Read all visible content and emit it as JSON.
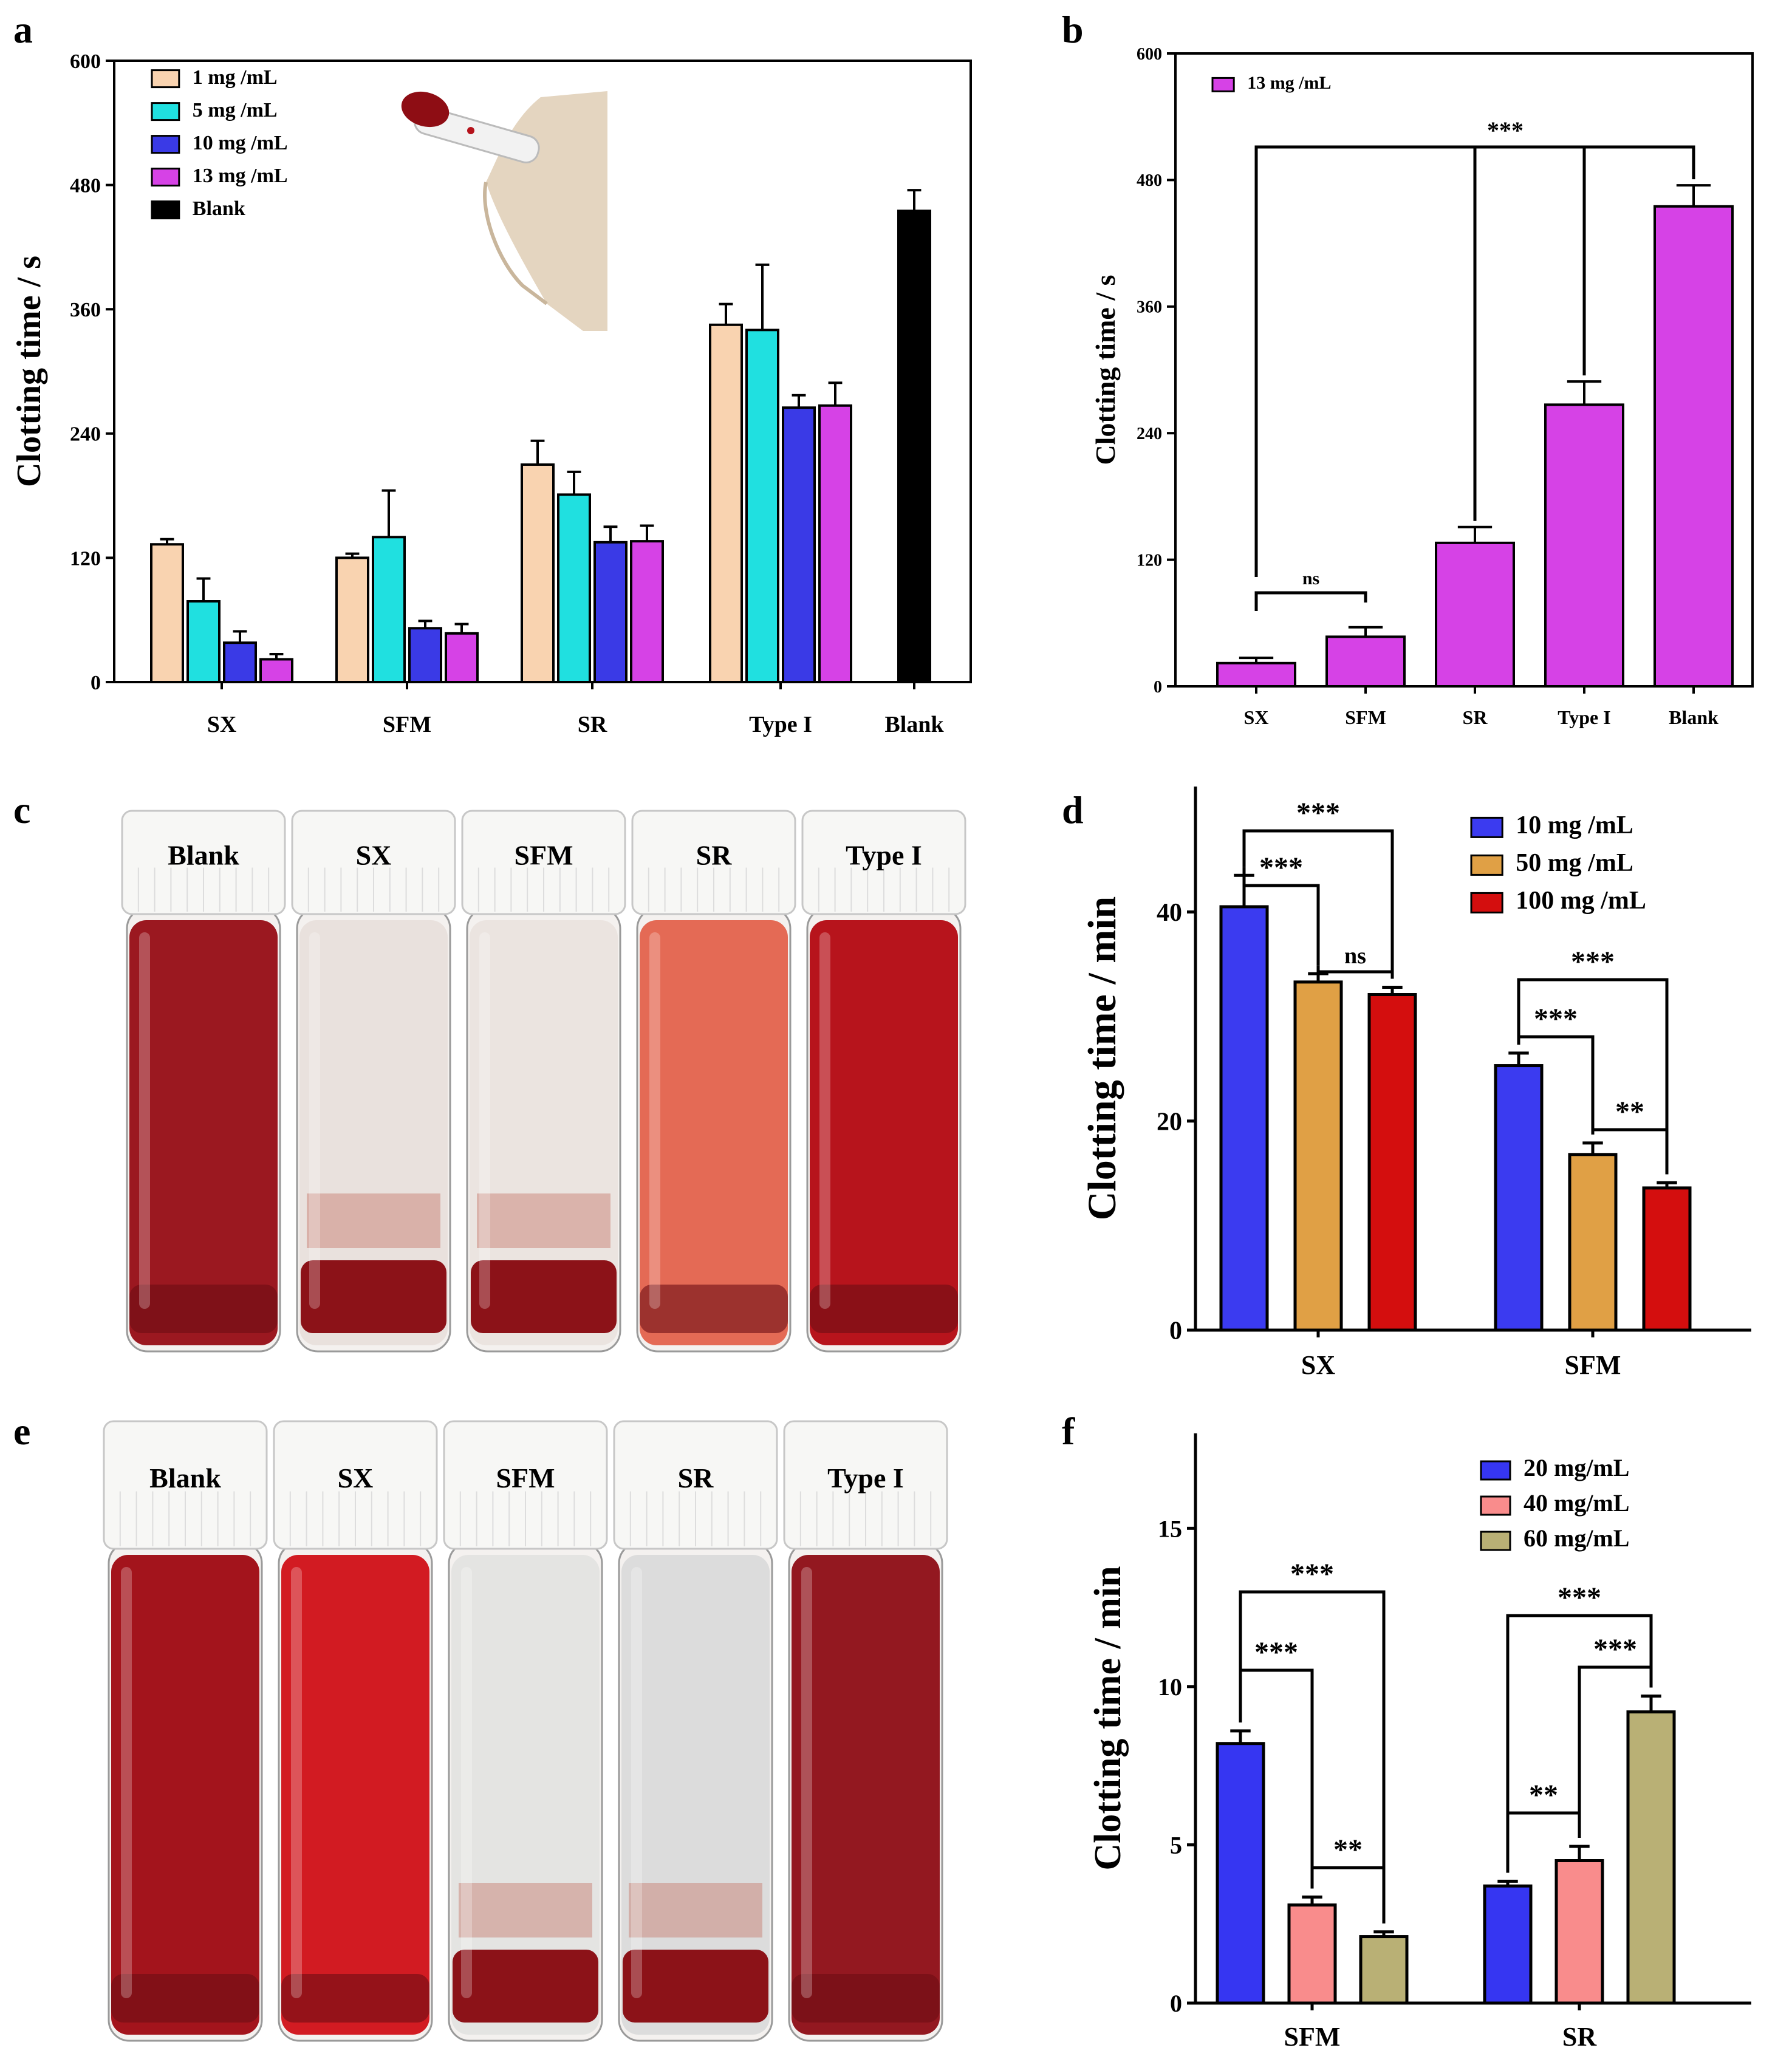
{
  "colors": {
    "c1": "#f9d3b0",
    "c5": "#20e0e0",
    "c10": "#3a3ae6",
    "c13": "#d642e6",
    "black": "#000000",
    "d10": "#3b3bf0",
    "d50": "#e0a045",
    "d100": "#d40e0e",
    "f20": "#3636f2",
    "f40": "#f98c8c",
    "f60": "#b9b075"
  },
  "chart_data": [
    {
      "panel": "a",
      "type": "bar",
      "ylabel": "Clotting time / s",
      "ylim": [
        0,
        600
      ],
      "yticks": [
        0,
        120,
        240,
        360,
        480,
        600
      ],
      "categories": [
        "SX",
        "SFM",
        "SR",
        "Type I",
        "Blank"
      ],
      "series": [
        {
          "name": "1 mg /mL",
          "color": "#f9d3b0",
          "values": [
            133,
            120,
            210,
            345,
            null
          ],
          "errors": [
            5,
            4,
            23,
            20,
            null
          ]
        },
        {
          "name": "5 mg /mL",
          "color": "#20e0e0",
          "values": [
            78,
            140,
            181,
            340,
            null
          ],
          "errors": [
            22,
            45,
            22,
            63,
            null
          ]
        },
        {
          "name": "10 mg /mL",
          "color": "#3a3ae6",
          "values": [
            38,
            52,
            135,
            265,
            null
          ],
          "errors": [
            11,
            7,
            15,
            12,
            null
          ]
        },
        {
          "name": "13 mg /mL",
          "color": "#d642e6",
          "values": [
            22,
            47,
            136,
            267,
            null
          ],
          "errors": [
            5,
            9,
            15,
            22,
            null
          ]
        },
        {
          "name": "Blank",
          "color": "#000000",
          "values": [
            null,
            null,
            null,
            null,
            455
          ],
          "errors": [
            null,
            null,
            null,
            null,
            20
          ]
        }
      ],
      "inset": "photo of blood-clotted tube"
    },
    {
      "panel": "b",
      "type": "bar",
      "ylabel": "Clotting time / s",
      "ylim": [
        0,
        600
      ],
      "yticks": [
        0,
        120,
        240,
        360,
        480,
        600
      ],
      "categories": [
        "SX",
        "SFM",
        "SR",
        "Type I",
        "Blank"
      ],
      "series": [
        {
          "name": "13 mg /mL",
          "color": "#d642e6",
          "values": [
            22,
            47,
            136,
            267,
            455
          ],
          "errors": [
            5,
            9,
            15,
            22,
            20
          ]
        }
      ],
      "significance": [
        {
          "from": 0,
          "to": 1,
          "label": "ns"
        },
        {
          "from": 0,
          "to": 4,
          "label": "***",
          "drops": [
            2,
            3
          ]
        }
      ]
    },
    {
      "panel": "d",
      "type": "bar",
      "ylabel": "Clotting time / min",
      "ylim": [
        0,
        52
      ],
      "yticks": [
        0,
        20,
        40
      ],
      "categories": [
        "SX",
        "SFM"
      ],
      "series": [
        {
          "name": "10 mg /mL",
          "color": "#3b3bf0",
          "values": [
            40.5,
            25.3
          ],
          "errors": [
            3.0,
            1.2
          ]
        },
        {
          "name": "50 mg /mL",
          "color": "#e0a045",
          "values": [
            33.3,
            16.8
          ],
          "errors": [
            0.8,
            1.1
          ]
        },
        {
          "name": "100 mg /mL",
          "color": "#d40e0e",
          "values": [
            32.1,
            13.6
          ],
          "errors": [
            0.7,
            0.5
          ]
        }
      ],
      "significance": [
        {
          "group": 0,
          "from": 0,
          "to": 2,
          "label": "***"
        },
        {
          "group": 0,
          "from": 0,
          "to": 1,
          "label": "***"
        },
        {
          "group": 0,
          "from": 1,
          "to": 2,
          "label": "ns"
        },
        {
          "group": 1,
          "from": 0,
          "to": 2,
          "label": "***"
        },
        {
          "group": 1,
          "from": 0,
          "to": 1,
          "label": "***"
        },
        {
          "group": 1,
          "from": 1,
          "to": 2,
          "label": "**"
        }
      ]
    },
    {
      "panel": "f",
      "type": "bar",
      "ylabel": "Clotting time / min",
      "ylim": [
        0,
        18
      ],
      "yticks": [
        0,
        5,
        10,
        15
      ],
      "categories": [
        "SFM",
        "SR"
      ],
      "series": [
        {
          "name": "20 mg/mL",
          "color": "#3636f2",
          "values": [
            8.2,
            3.7
          ],
          "errors": [
            0.4,
            0.15
          ]
        },
        {
          "name": "40 mg/mL",
          "color": "#f98c8c",
          "values": [
            3.1,
            4.5
          ],
          "errors": [
            0.25,
            0.45
          ]
        },
        {
          "name": "60 mg/mL",
          "color": "#b9b075",
          "values": [
            2.1,
            9.2
          ],
          "errors": [
            0.15,
            0.5
          ]
        }
      ],
      "significance": [
        {
          "group": 0,
          "from": 0,
          "to": 2,
          "label": "***"
        },
        {
          "group": 0,
          "from": 0,
          "to": 1,
          "label": "***"
        },
        {
          "group": 0,
          "from": 1,
          "to": 2,
          "label": "**"
        },
        {
          "group": 1,
          "from": 0,
          "to": 2,
          "label": "***"
        },
        {
          "group": 1,
          "from": 1,
          "to": 2,
          "label": "***"
        },
        {
          "group": 1,
          "from": 0,
          "to": 1,
          "label": "**"
        }
      ]
    }
  ],
  "photos": {
    "c": {
      "letter": "c",
      "vials": [
        {
          "label": "Blank",
          "liquid": "#9b1820",
          "clear": false
        },
        {
          "label": "SX",
          "liquid": "#e9e1dd",
          "clear": true
        },
        {
          "label": "SFM",
          "liquid": "#ebe4e0",
          "clear": true
        },
        {
          "label": "SR",
          "liquid": "#e46a55",
          "clear": false
        },
        {
          "label": "Type I",
          "liquid": "#b7141c",
          "clear": false
        }
      ]
    },
    "e": {
      "letter": "e",
      "vials": [
        {
          "label": "Blank",
          "liquid": "#a3141c",
          "clear": false
        },
        {
          "label": "SX",
          "liquid": "#d21b22",
          "clear": false
        },
        {
          "label": "SFM",
          "liquid": "#e4e4e2",
          "clear": true
        },
        {
          "label": "SR",
          "liquid": "#dcdcdc",
          "clear": true
        },
        {
          "label": "Type I",
          "liquid": "#931820",
          "clear": false
        }
      ]
    }
  }
}
